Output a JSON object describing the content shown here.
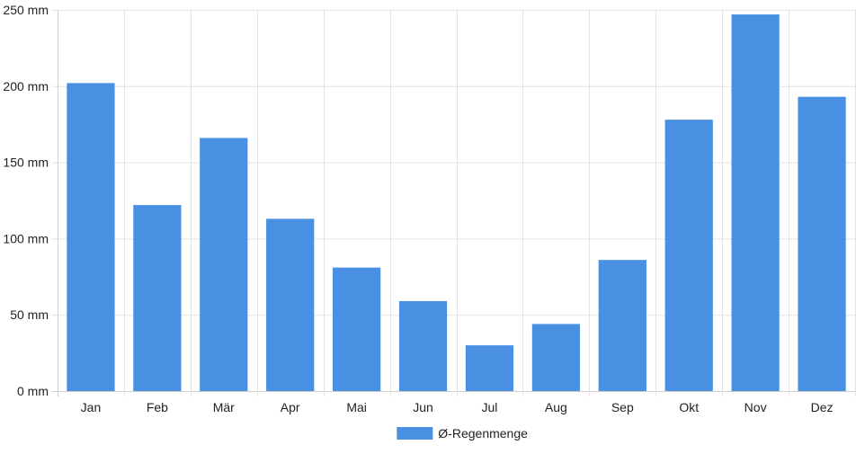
{
  "chart_data": {
    "type": "bar",
    "categories": [
      "Jan",
      "Feb",
      "Mär",
      "Apr",
      "Mai",
      "Jun",
      "Jul",
      "Aug",
      "Sep",
      "Okt",
      "Nov",
      "Dez"
    ],
    "series": [
      {
        "name": "Ø-Regenmenge",
        "values": [
          202,
          122,
          166,
          113,
          81,
          59,
          30,
          44,
          86,
          178,
          247,
          193
        ],
        "color": "#4a90e2"
      }
    ],
    "ylim": [
      0,
      250
    ],
    "yticks": [
      0,
      50,
      100,
      150,
      200,
      250
    ],
    "y_unit": "mm",
    "ytick_labels": [
      "0 mm",
      "50 mm",
      "100 mm",
      "150 mm",
      "200 mm",
      "250 mm"
    ],
    "grid": true,
    "legend_position": "bottom-center"
  }
}
